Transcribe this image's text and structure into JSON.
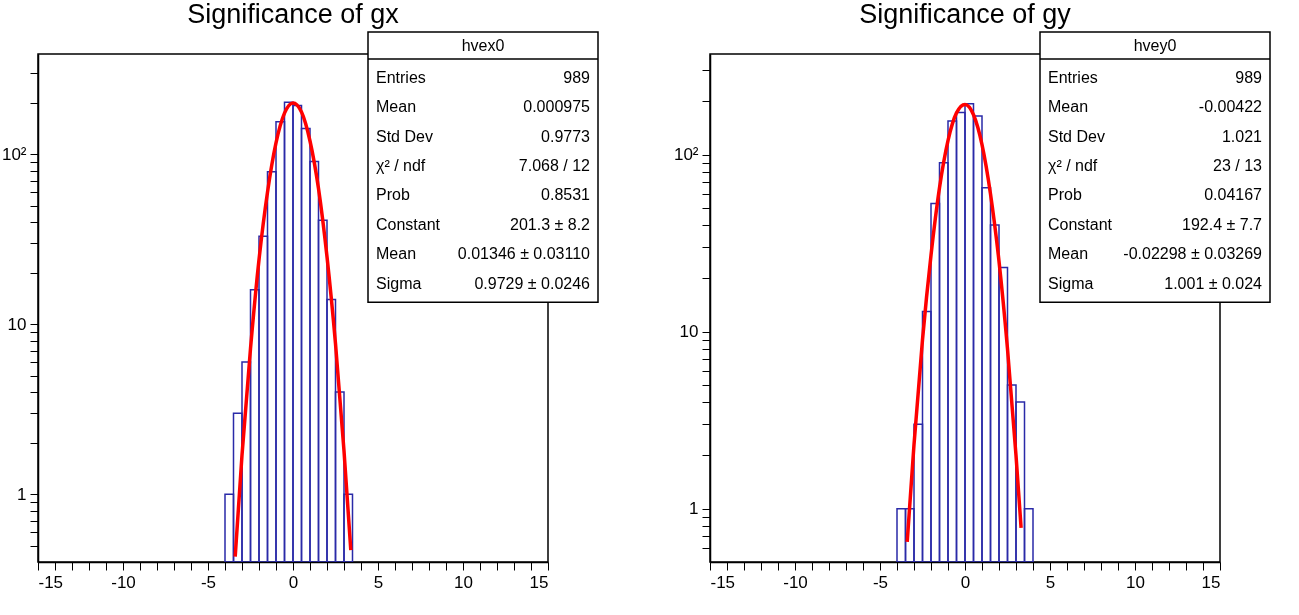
{
  "chart_data": [
    {
      "type": "histogram",
      "title": "Significance of gx",
      "log": "y",
      "grid": false,
      "bins": [
        -4,
        -3.5,
        -3,
        -2.5,
        -2,
        -1.5,
        -1,
        -0.5,
        0,
        0.5,
        1,
        1.5,
        2,
        2.5,
        3,
        3.5
      ],
      "series": [
        {
          "color": "#2a2aa8",
          "values": [
            1,
            3,
            6,
            16,
            33,
            79,
            156,
            203,
            194,
            142,
            91,
            41,
            14,
            4,
            1
          ]
        },
        {
          "type": "line",
          "color": "#ff0000",
          "x": [
            -3.4,
            -3,
            -2.5,
            -2,
            -1.5,
            -1,
            -0.5,
            0,
            0.5,
            1,
            1.5,
            2,
            2.5,
            3,
            3.4
          ],
          "values": [
            0.43,
            1.7,
            7.2,
            24,
            60,
            117,
            175,
            201,
            178,
            120,
            63,
            25,
            7.7,
            1.8,
            0.47
          ]
        }
      ],
      "xlim": [
        -15,
        15
      ],
      "ylim": [
        0.4,
        390
      ],
      "xticks": [
        -15,
        {
          "value": -14,
          "label": null
        },
        {
          "value": -13,
          "label": null
        },
        {
          "value": -12,
          "label": null
        },
        {
          "value": -11,
          "label": null
        },
        -10,
        {
          "value": -9,
          "label": null
        },
        {
          "value": -8,
          "label": null
        },
        {
          "value": -7,
          "label": null
        },
        {
          "value": -6,
          "label": null
        },
        -5,
        {
          "value": -4,
          "label": null
        },
        {
          "value": -3,
          "label": null
        },
        {
          "value": -2,
          "label": null
        },
        {
          "value": -1,
          "label": null
        },
        0,
        {
          "value": 1,
          "label": null
        },
        {
          "value": 2,
          "label": null
        },
        {
          "value": 3,
          "label": null
        },
        {
          "value": 4,
          "label": null
        },
        5,
        {
          "value": 6,
          "label": null
        },
        {
          "value": 7,
          "label": null
        },
        {
          "value": 8,
          "label": null
        },
        {
          "value": 9,
          "label": null
        },
        10,
        {
          "value": 11,
          "label": null
        },
        {
          "value": 12,
          "label": null
        },
        {
          "value": 13,
          "label": null
        },
        {
          "value": 14,
          "label": null
        },
        15
      ],
      "yticks": [
        {
          "value": 0.5,
          "label": null
        },
        {
          "value": 0.6,
          "label": null
        },
        {
          "value": 0.7,
          "label": null
        },
        {
          "value": 0.8,
          "label": null
        },
        {
          "value": 0.9,
          "label": null
        },
        1,
        {
          "value": 2,
          "label": null
        },
        {
          "value": 3,
          "label": null
        },
        {
          "value": 4,
          "label": null
        },
        {
          "value": 5,
          "label": null
        },
        {
          "value": 6,
          "label": null
        },
        {
          "value": 7,
          "label": null
        },
        {
          "value": 8,
          "label": null
        },
        {
          "value": 9,
          "label": null
        },
        10,
        {
          "value": 20,
          "label": null
        },
        {
          "value": 30,
          "label": null
        },
        {
          "value": 40,
          "label": null
        },
        {
          "value": 50,
          "label": null
        },
        {
          "value": 60,
          "label": null
        },
        {
          "value": 70,
          "label": null
        },
        {
          "value": 80,
          "label": null
        },
        {
          "value": 90,
          "label": null
        },
        {
          "value": 100,
          "label": "10²"
        },
        {
          "value": 200,
          "label": null
        },
        {
          "value": 300,
          "label": null
        }
      ],
      "annotations": [
        "hvex0",
        "Entries",
        "989",
        "Mean",
        "0.000975",
        "Std Dev",
        "0.9773",
        "χ² / ndf",
        "7.068 / 12",
        "Prob",
        "0.8531",
        "Constant",
        "201.3 ± 8.2",
        "Mean",
        "0.01346 ± 0.03110",
        "Sigma",
        "0.9729 ± 0.0246"
      ]
    },
    {
      "type": "histogram",
      "title": "Significance of gy",
      "log": "y",
      "grid": false,
      "bins": [
        -4,
        -3.5,
        -3,
        -2.5,
        -2,
        -1.5,
        -1,
        -0.5,
        0,
        0.5,
        1,
        1.5,
        2,
        2.5,
        3,
        3.5,
        4
      ],
      "series": [
        {
          "color": "#2a2aa8",
          "values": [
            1,
            1,
            3,
            13,
            53,
            90,
            155,
            173,
            194,
            165,
            65,
            40,
            23,
            5,
            4,
            1
          ]
        },
        {
          "type": "line",
          "color": "#ff0000",
          "x": [
            -3.4,
            -3,
            -2.5,
            -2,
            -1.5,
            -1,
            -0.5,
            0,
            0.5,
            1,
            1.5,
            2,
            2.5,
            3,
            3.3
          ],
          "values": [
            0.65,
            2.3,
            9,
            27,
            65,
            120,
            172,
            192,
            168,
            114,
            60,
            25,
            8,
            2,
            0.78
          ]
        }
      ],
      "xlim": [
        -15,
        15
      ],
      "ylim": [
        0.5,
        370
      ],
      "xticks": [
        -15,
        {
          "value": -14,
          "label": null
        },
        {
          "value": -13,
          "label": null
        },
        {
          "value": -12,
          "label": null
        },
        {
          "value": -11,
          "label": null
        },
        -10,
        {
          "value": -9,
          "label": null
        },
        {
          "value": -8,
          "label": null
        },
        {
          "value": -7,
          "label": null
        },
        {
          "value": -6,
          "label": null
        },
        -5,
        {
          "value": -4,
          "label": null
        },
        {
          "value": -3,
          "label": null
        },
        {
          "value": -2,
          "label": null
        },
        {
          "value": -1,
          "label": null
        },
        0,
        {
          "value": 1,
          "label": null
        },
        {
          "value": 2,
          "label": null
        },
        {
          "value": 3,
          "label": null
        },
        {
          "value": 4,
          "label": null
        },
        5,
        {
          "value": 6,
          "label": null
        },
        {
          "value": 7,
          "label": null
        },
        {
          "value": 8,
          "label": null
        },
        {
          "value": 9,
          "label": null
        },
        10,
        {
          "value": 11,
          "label": null
        },
        {
          "value": 12,
          "label": null
        },
        {
          "value": 13,
          "label": null
        },
        {
          "value": 14,
          "label": null
        },
        15
      ],
      "yticks": [
        {
          "value": 0.6,
          "label": null
        },
        {
          "value": 0.7,
          "label": null
        },
        {
          "value": 0.8,
          "label": null
        },
        {
          "value": 0.9,
          "label": null
        },
        1,
        {
          "value": 2,
          "label": null
        },
        {
          "value": 3,
          "label": null
        },
        {
          "value": 4,
          "label": null
        },
        {
          "value": 5,
          "label": null
        },
        {
          "value": 6,
          "label": null
        },
        {
          "value": 7,
          "label": null
        },
        {
          "value": 8,
          "label": null
        },
        {
          "value": 9,
          "label": null
        },
        10,
        {
          "value": 20,
          "label": null
        },
        {
          "value": 30,
          "label": null
        },
        {
          "value": 40,
          "label": null
        },
        {
          "value": 50,
          "label": null
        },
        {
          "value": 60,
          "label": null
        },
        {
          "value": 70,
          "label": null
        },
        {
          "value": 80,
          "label": null
        },
        {
          "value": 90,
          "label": null
        },
        {
          "value": 100,
          "label": "10²"
        },
        {
          "value": 200,
          "label": null
        },
        {
          "value": 300,
          "label": null
        }
      ],
      "annotations": [
        "hvey0",
        "Entries",
        "989",
        "Mean",
        "-0.00422",
        "Std Dev",
        "1.021",
        "χ² / ndf",
        "23 / 13",
        "Prob",
        "0.04167",
        "Constant",
        "192.4 ± 7.7",
        "Mean",
        "-0.02298 ± 0.03269",
        "Sigma",
        "1.001 ± 0.024"
      ]
    }
  ]
}
